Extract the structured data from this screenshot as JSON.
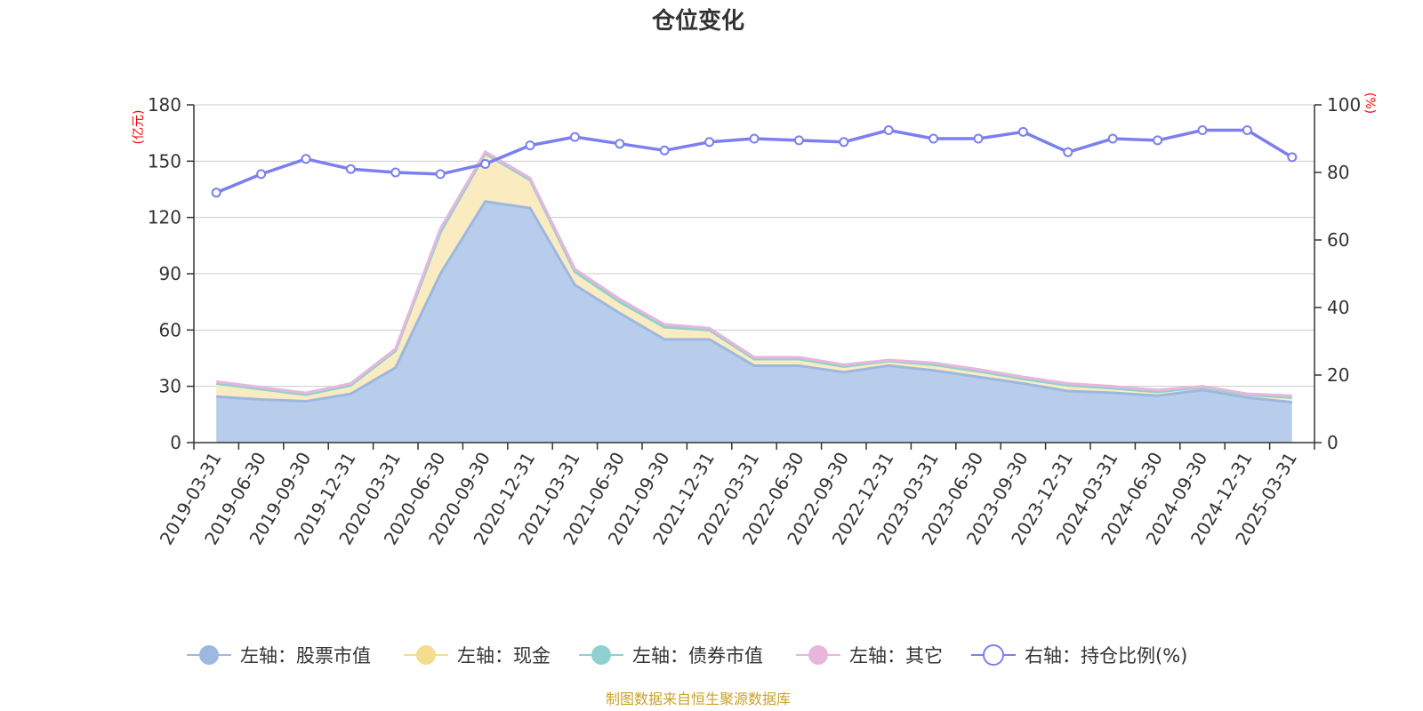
{
  "chart_data": {
    "type": "area",
    "title": "仓位变化",
    "left_axis": {
      "unit": "(亿元)",
      "ylim": [
        0,
        180
      ],
      "ticks": [
        0,
        30,
        60,
        90,
        120,
        150,
        180
      ]
    },
    "right_axis": {
      "unit": "(%)",
      "ylim": [
        0,
        100
      ],
      "ticks": [
        0,
        20,
        40,
        60,
        80,
        100
      ]
    },
    "categories": [
      "2019-03-31",
      "2019-06-30",
      "2019-09-30",
      "2019-12-31",
      "2020-03-31",
      "2020-06-30",
      "2020-09-30",
      "2020-12-31",
      "2021-03-31",
      "2021-06-30",
      "2021-09-30",
      "2021-12-31",
      "2022-03-31",
      "2022-06-30",
      "2022-09-30",
      "2022-12-31",
      "2023-03-31",
      "2023-06-30",
      "2023-09-30",
      "2023-12-31",
      "2024-03-31",
      "2024-06-30",
      "2024-09-30",
      "2024-12-31",
      "2025-03-31"
    ],
    "series": [
      {
        "name": "左轴：股票市值",
        "axis": "left",
        "color": "#9db8e0",
        "fill": "#b7cdeb",
        "values": [
          24.5,
          23,
          22,
          26,
          40,
          90,
          128.5,
          125,
          84,
          69,
          55,
          55,
          41,
          41,
          37.5,
          41,
          38.5,
          35,
          31.5,
          27.5,
          26.5,
          25,
          28,
          24,
          21.5
        ]
      },
      {
        "name": "左轴：现金",
        "axis": "left",
        "color": "#f5dc8e",
        "fill": "#faecc0",
        "values": [
          7,
          5.5,
          3.5,
          4.5,
          9,
          22,
          25.5,
          15,
          7,
          6,
          6.5,
          5,
          3.5,
          3.5,
          3,
          2.5,
          3,
          3,
          2.5,
          3,
          2.5,
          2,
          1.5,
          1.5,
          2.5
        ]
      },
      {
        "name": "左轴：债券市值",
        "axis": "left",
        "color": "#8fd1d1",
        "fill": "#b5e3e3",
        "values": [
          0,
          0,
          0,
          0,
          0,
          0,
          0,
          0,
          0,
          0,
          0,
          0,
          0,
          0,
          0,
          0,
          0,
          0,
          0,
          0,
          0,
          0,
          0,
          0,
          0
        ]
      },
      {
        "name": "左轴：其它",
        "axis": "left",
        "color": "#e8b6dc",
        "fill": "#f1cfe7",
        "values": [
          1,
          1,
          1,
          1,
          1,
          2,
          1,
          1,
          1.5,
          1.5,
          1.5,
          1,
          1,
          1,
          1,
          0.5,
          1,
          1,
          1,
          1,
          1,
          1,
          0.5,
          0.5,
          1
        ]
      },
      {
        "name": "右轴：持仓比例(%)",
        "axis": "right",
        "type": "line",
        "color": "#7b7ff0",
        "values": [
          74,
          79.5,
          84,
          81,
          80,
          79.5,
          82.5,
          88,
          90.5,
          88.5,
          86.5,
          89,
          90,
          89.5,
          89,
          92.5,
          90,
          90,
          92,
          86,
          90,
          89.5,
          92.5,
          92.5,
          84.5
        ]
      }
    ],
    "grid": true,
    "legend_position": "bottom-center",
    "source_note": "制图数据来自恒生聚源数据库"
  }
}
